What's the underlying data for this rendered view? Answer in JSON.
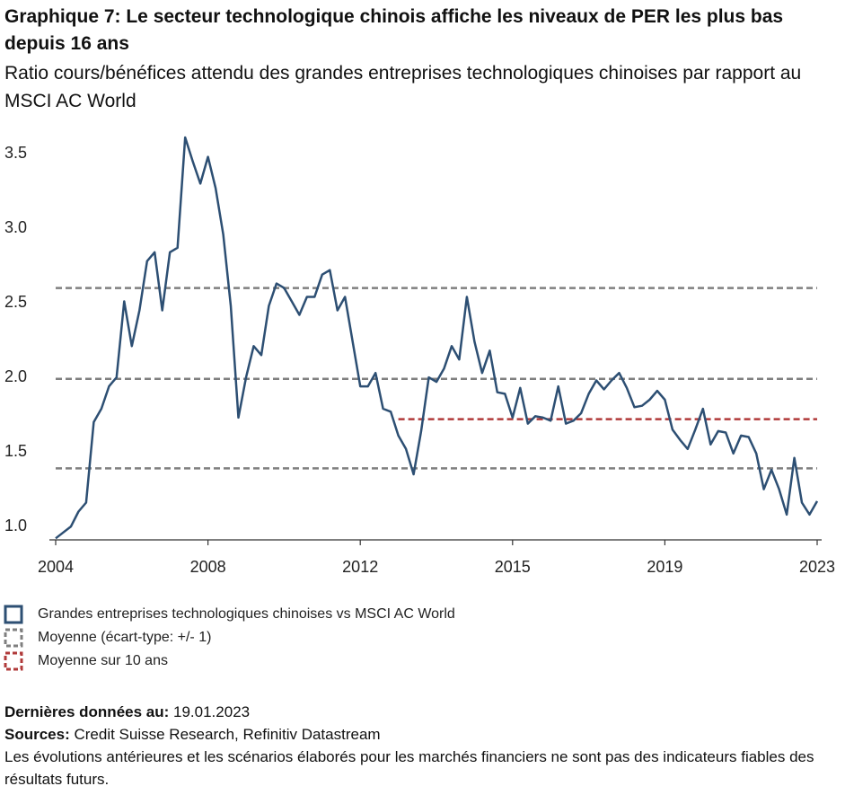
{
  "chart_data": {
    "type": "line",
    "title": "Graphique 7: Le secteur technologique chinois affiche les niveaux de PER les plus bas depuis 16 ans",
    "subtitle": "Ratio cours/bénéfices attendu des grandes entreprises technologiques chinoises par rapport au MSCI AC World",
    "categories": [
      "2004",
      null,
      null,
      null,
      null,
      null,
      null,
      null,
      null,
      null,
      null,
      null,
      null,
      null,
      null,
      null,
      null,
      null,
      null,
      null,
      "2008",
      null,
      null,
      null,
      null,
      null,
      null,
      null,
      null,
      null,
      null,
      null,
      null,
      null,
      null,
      null,
      null,
      null,
      null,
      null,
      "2012",
      null,
      null,
      null,
      null,
      null,
      null,
      null,
      null,
      null,
      null,
      null,
      null,
      null,
      null,
      null,
      null,
      null,
      null,
      null,
      "2015",
      null,
      null,
      null,
      null,
      null,
      null,
      null,
      null,
      null,
      null,
      null,
      null,
      null,
      null,
      null,
      null,
      null,
      null,
      null,
      "2019",
      null,
      null,
      null,
      null,
      null,
      null,
      null,
      null,
      null,
      null,
      null,
      null,
      null,
      null,
      null,
      null,
      null,
      null,
      null,
      "2023"
    ],
    "series": [
      {
        "name": "Grandes entreprises technologiques chinoises vs MSCI AC World",
        "color": "#2d4f73",
        "values": [
          1.01,
          1.05,
          1.09,
          1.19,
          1.25,
          1.79,
          1.88,
          2.03,
          2.09,
          2.6,
          2.3,
          2.54,
          2.87,
          2.93,
          2.54,
          2.93,
          2.96,
          3.7,
          3.54,
          3.39,
          3.57,
          3.36,
          3.05,
          2.57,
          1.82,
          2.09,
          2.3,
          2.24,
          2.57,
          2.72,
          2.69,
          2.6,
          2.51,
          2.63,
          2.63,
          2.78,
          2.81,
          2.54,
          2.63,
          2.33,
          2.03,
          2.03,
          2.12,
          1.88,
          1.86,
          1.7,
          1.61,
          1.44,
          1.73,
          2.09,
          2.06,
          2.15,
          2.3,
          2.21,
          2.63,
          2.33,
          2.12,
          2.27,
          1.99,
          1.98,
          1.82,
          2.02,
          1.78,
          1.83,
          1.82,
          1.8,
          2.03,
          1.78,
          1.8,
          1.85,
          1.98,
          2.07,
          2.01,
          2.07,
          2.12,
          2.02,
          1.89,
          1.9,
          1.94,
          2.0,
          1.94,
          1.74,
          1.67,
          1.61,
          1.74,
          1.88,
          1.64,
          1.73,
          1.72,
          1.58,
          1.7,
          1.69,
          1.58,
          1.34,
          1.47,
          1.34,
          1.17,
          1.55,
          1.25,
          1.17,
          1.26
        ]
      },
      {
        "name": "Moyenne sur 10 ans",
        "color": "#b03a3a",
        "dashed": true,
        "values": [
          null,
          null,
          null,
          null,
          null,
          null,
          null,
          null,
          null,
          null,
          null,
          null,
          null,
          null,
          null,
          null,
          null,
          null,
          null,
          null,
          null,
          null,
          null,
          null,
          null,
          null,
          null,
          null,
          null,
          null,
          null,
          null,
          null,
          null,
          null,
          null,
          null,
          null,
          null,
          null,
          null,
          null,
          null,
          null,
          null,
          1.81,
          1.81,
          1.81,
          1.81,
          1.81,
          1.81,
          1.81,
          1.81,
          1.81,
          1.81,
          1.81,
          1.81,
          1.81,
          1.81,
          1.81,
          1.81,
          1.81,
          1.81,
          1.81,
          1.81,
          1.81,
          1.81,
          1.81,
          1.81,
          1.81,
          1.81,
          1.81,
          1.81,
          1.81,
          1.81,
          1.81,
          1.81,
          1.81,
          1.81,
          1.81,
          1.81,
          1.81,
          1.81,
          1.81,
          1.81,
          1.81,
          1.81,
          1.81,
          1.81,
          1.81,
          1.81,
          1.81,
          1.81,
          1.81,
          1.81,
          1.81,
          1.81,
          1.81,
          1.81,
          1.81,
          1.81
        ]
      }
    ],
    "reference_lines": {
      "name": "Moyenne (écart-type: +/- 1)",
      "color": "#7f7f7f",
      "values": [
        2.69,
        2.08,
        1.48
      ]
    },
    "ylim": [
      1.0,
      3.7
    ],
    "yticks": [
      {
        "value": 1.0,
        "label": "1.0"
      },
      1.5,
      {
        "value": 2.0,
        "label": "2.0"
      },
      2.5,
      {
        "value": 3.0,
        "label": "3.0"
      },
      3.5
    ],
    "grid": false
  },
  "footer": {
    "last_data": {
      "label": "Dernières données au:",
      "value": "19.01.2023"
    },
    "sources": {
      "label": "Sources:",
      "value": "Credit Suisse Research, Refinitiv Datastream"
    },
    "note": "Les évolutions antérieures et les scénarios élaborés pour les marchés financiers ne sont pas des indicateurs fiables des résultats futurs."
  }
}
